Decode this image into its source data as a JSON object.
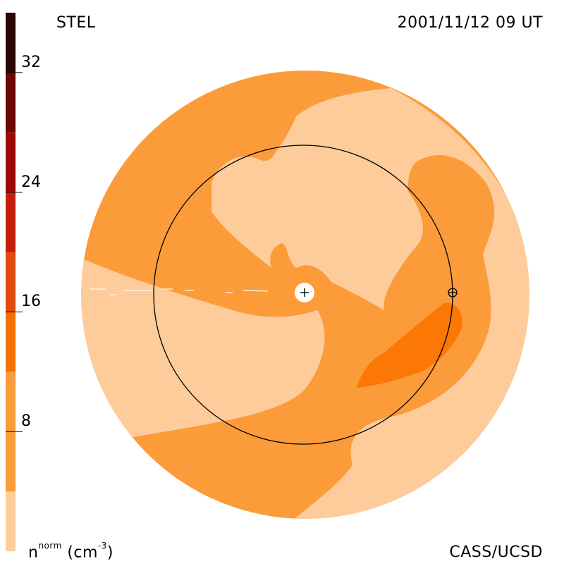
{
  "header": {
    "instrument": "STEL",
    "timestamp": "2001/11/12 09 UT"
  },
  "footer": {
    "credit": "CASS/UCSD",
    "unit_base": "n",
    "unit_sup": "norm",
    "unit_tail": "(cm",
    "unit_exp": "-3",
    "unit_close": ")"
  },
  "colorbar": {
    "min": 0,
    "max": 36,
    "ticks": [
      {
        "value": 8,
        "label": "8"
      },
      {
        "value": 16,
        "label": "16"
      },
      {
        "value": 24,
        "label": "24"
      },
      {
        "value": 32,
        "label": "32"
      }
    ],
    "bands": [
      {
        "from": 0,
        "to": 4,
        "color": "#fdcc9a"
      },
      {
        "from": 4,
        "to": 12,
        "color": "#fc9b3a"
      },
      {
        "from": 12,
        "to": 16,
        "color": "#f57000"
      },
      {
        "from": 16,
        "to": 20,
        "color": "#e34a0d"
      },
      {
        "from": 20,
        "to": 24,
        "color": "#c51d0c"
      },
      {
        "from": 24,
        "to": 28,
        "color": "#9c0a06"
      },
      {
        "from": 28,
        "to": 32,
        "color": "#6b0806"
      },
      {
        "from": 32,
        "to": 36,
        "color": "#2a0502"
      }
    ]
  },
  "colors": {
    "low": "#fdcc9a",
    "mid": "#fc9b3a",
    "high": "#fb7706"
  }
}
